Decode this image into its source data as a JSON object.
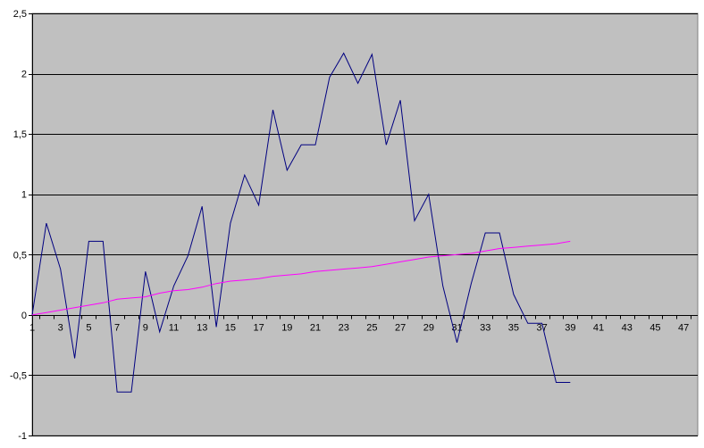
{
  "chart_data": {
    "type": "line",
    "title": "",
    "xlabel": "",
    "ylabel": "",
    "x_range": [
      1,
      48
    ],
    "ylim": [
      -1,
      2.5
    ],
    "y_ticks": [
      -1,
      -0.5,
      0,
      0.5,
      1,
      1.5,
      2,
      2.5
    ],
    "y_tick_labels": [
      "-1",
      "-0,5",
      "0",
      "0,5",
      "1",
      "1,5",
      "2",
      "2,5"
    ],
    "x_tick_labels": [
      "1",
      "3",
      "5",
      "7",
      "9",
      "11",
      "13",
      "15",
      "17",
      "19",
      "21",
      "23",
      "25",
      "27",
      "29",
      "31",
      "33",
      "35",
      "37",
      "39",
      "41",
      "43",
      "45",
      "47"
    ],
    "grid": true,
    "legend": "none",
    "colors": {
      "plot_background": "#c0c0c0",
      "gridlines": "#000000",
      "series_1": "#000080",
      "series_2": "#ff00ff"
    },
    "x": [
      1,
      2,
      3,
      4,
      5,
      6,
      7,
      8,
      9,
      10,
      11,
      12,
      13,
      14,
      15,
      16,
      17,
      18,
      19,
      20,
      21,
      22,
      23,
      24,
      25,
      26,
      27,
      28,
      29,
      30,
      31,
      32,
      33,
      34,
      35,
      36,
      37,
      38,
      39
    ],
    "series": [
      {
        "values": [
          0,
          0.76,
          0.38,
          -0.36,
          0.61,
          0.61,
          -0.64,
          -0.64,
          0.36,
          -0.14,
          0.24,
          0.49,
          0.9,
          -0.1,
          0.76,
          1.16,
          0.91,
          1.7,
          1.2,
          1.41,
          1.41,
          1.97,
          2.17,
          1.92,
          2.16,
          1.41,
          1.78,
          0.78,
          1.0,
          0.24,
          -0.23,
          0.26,
          0.68,
          0.68,
          0.17,
          -0.07,
          -0.07,
          -0.56,
          -0.56
        ]
      },
      {
        "values": [
          0,
          0.02,
          0.04,
          0.06,
          0.08,
          0.1,
          0.13,
          0.14,
          0.15,
          0.18,
          0.2,
          0.21,
          0.23,
          0.26,
          0.28,
          0.29,
          0.3,
          0.32,
          0.33,
          0.34,
          0.36,
          0.37,
          0.38,
          0.39,
          0.4,
          0.42,
          0.44,
          0.46,
          0.48,
          0.49,
          0.5,
          0.51,
          0.53,
          0.55,
          0.56,
          0.57,
          0.58,
          0.59,
          0.61
        ]
      }
    ]
  }
}
